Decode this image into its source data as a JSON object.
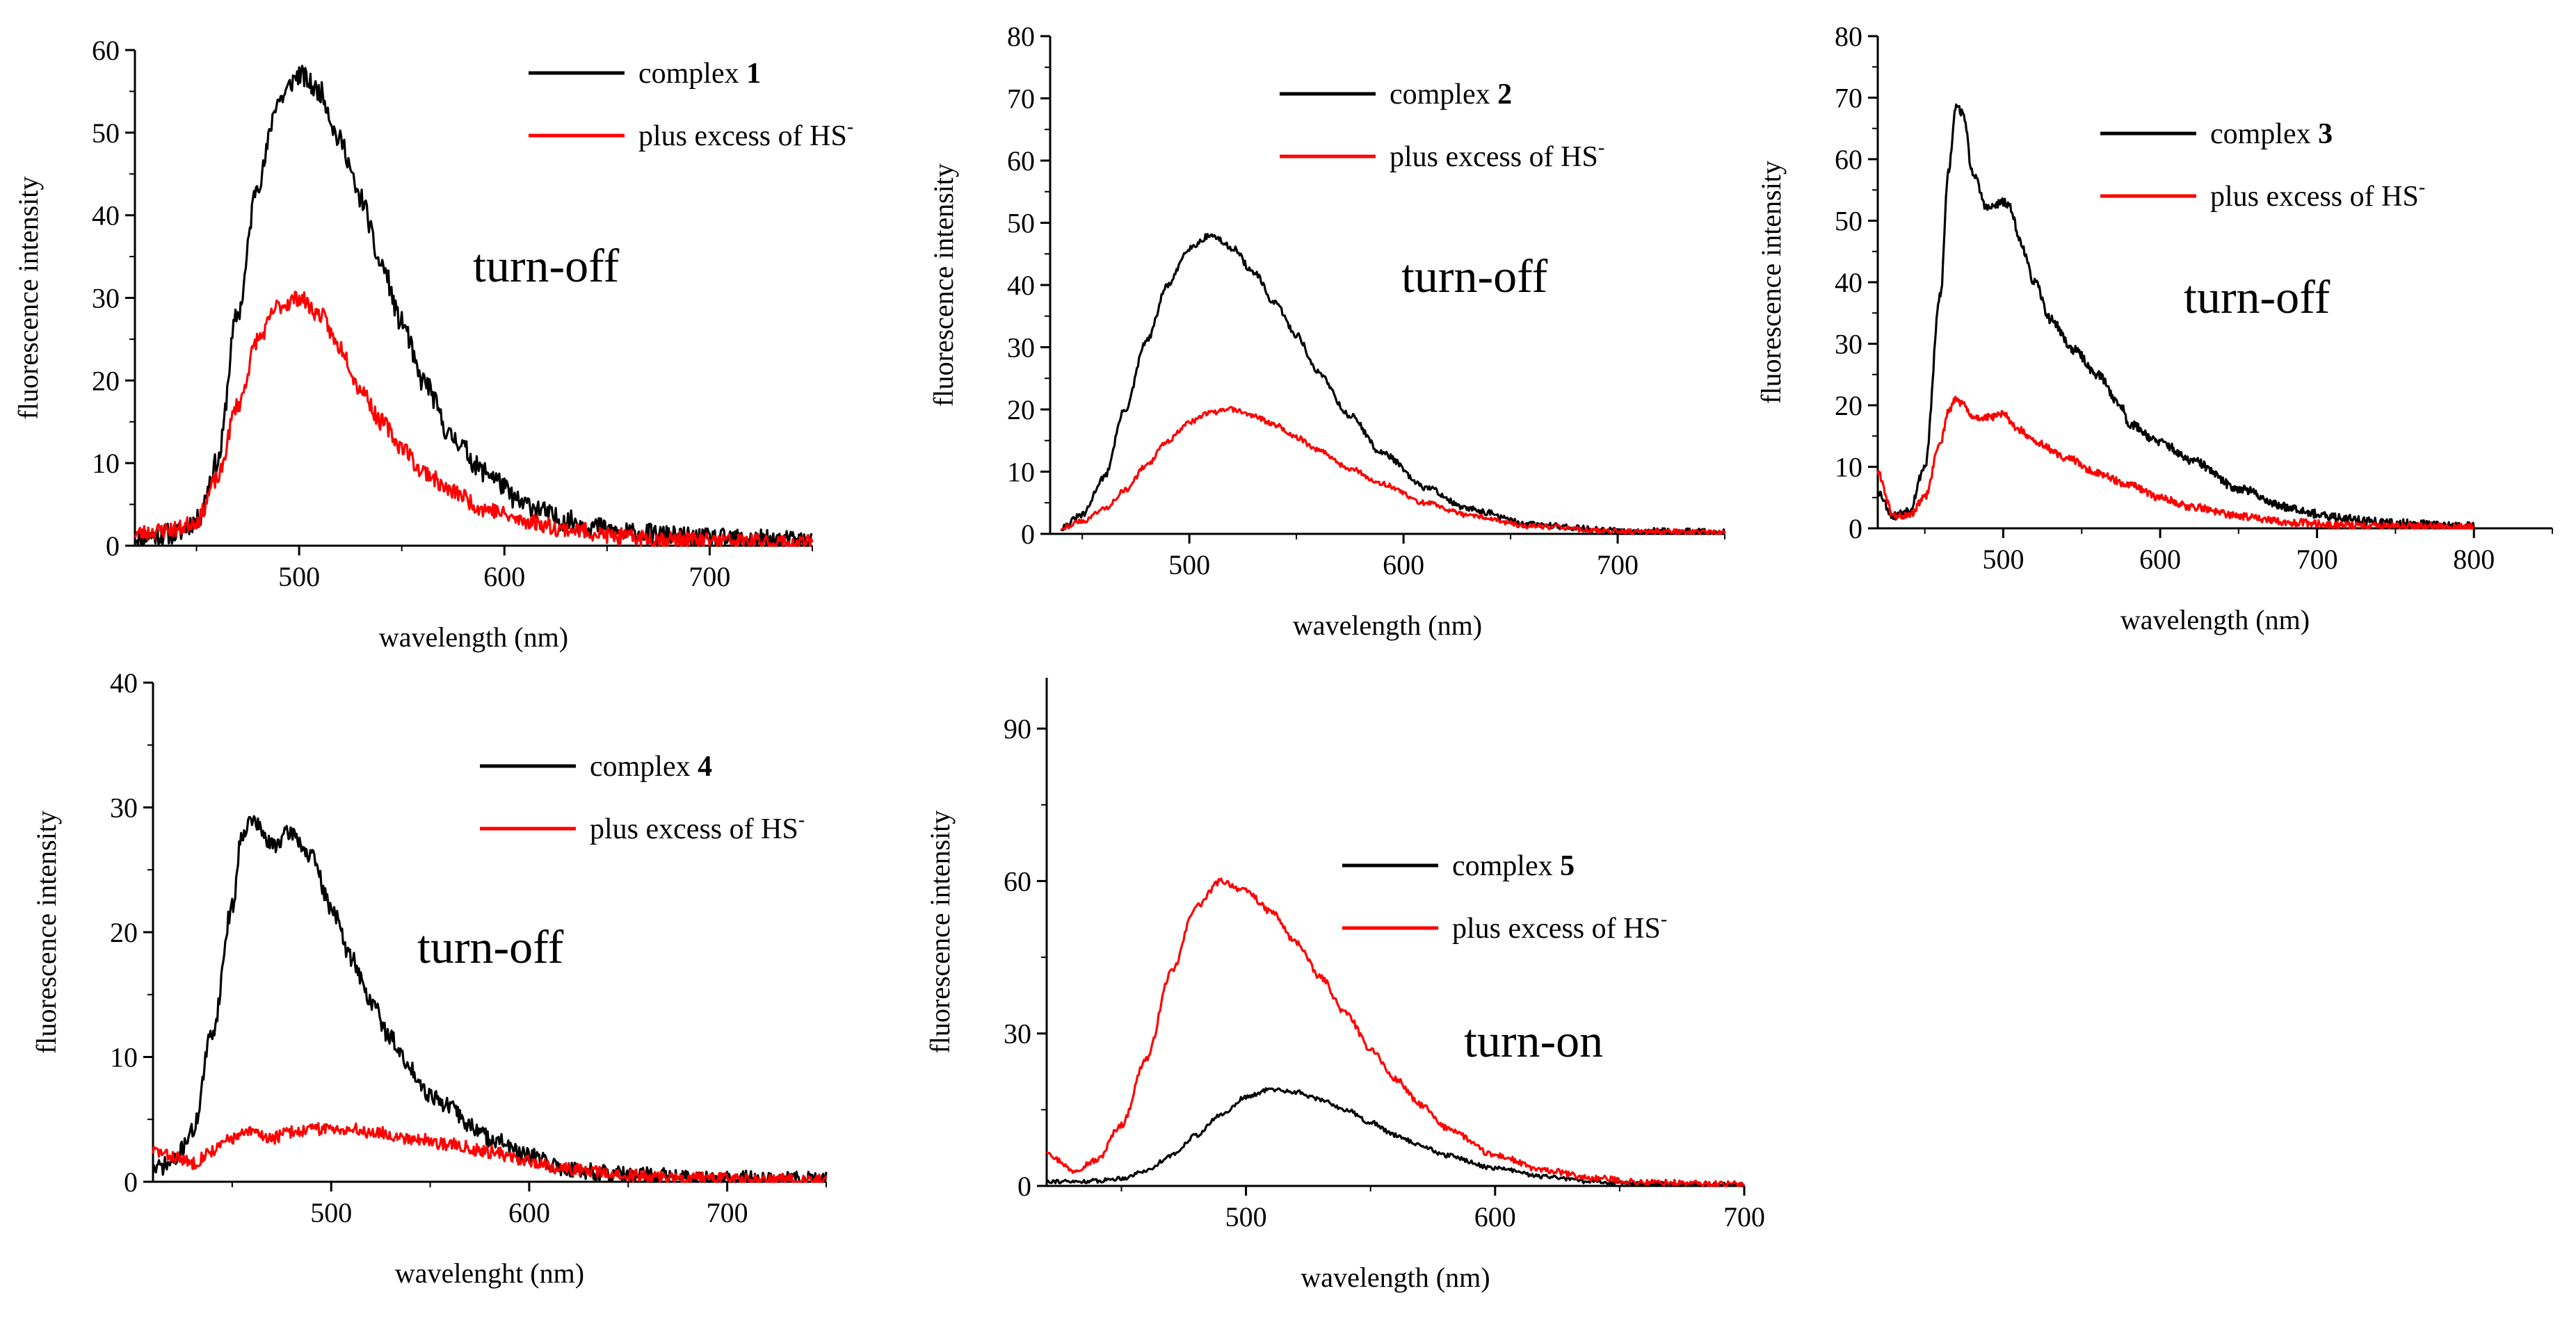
{
  "chart_data": [
    {
      "id": "p1",
      "type": "line",
      "x_label": "wavelength (nm)",
      "y_label": "fluorescence intensity",
      "xlim": [
        420,
        750
      ],
      "ylim": [
        0,
        60
      ],
      "x_ticks": [
        500,
        600,
        700
      ],
      "y_ticks": [
        0,
        10,
        20,
        30,
        40,
        50,
        60
      ],
      "annotation": "turn-off",
      "legend": [
        {
          "text": "complex ",
          "bold": "1",
          "sup": "",
          "color": "#000000"
        },
        {
          "text": "plus excess of HS",
          "bold": "",
          "sup": "-",
          "color": "#ff0000"
        }
      ],
      "series": [
        {
          "color": "#000000",
          "noise": 1.3,
          "seed": 11,
          "x": [
            420,
            440,
            450,
            460,
            470,
            480,
            490,
            500,
            510,
            520,
            530,
            540,
            550,
            560,
            575,
            590,
            610,
            630,
            660,
            700,
            750
          ],
          "y": [
            1,
            1.5,
            3,
            10,
            28,
            44,
            54,
            57,
            55,
            49,
            42,
            34,
            27,
            20,
            13,
            9,
            5,
            3,
            1.5,
            0.8,
            0.5
          ]
        },
        {
          "color": "#ff0000",
          "noise": 1.0,
          "seed": 23,
          "x": [
            420,
            440,
            450,
            460,
            470,
            480,
            490,
            500,
            510,
            520,
            530,
            540,
            550,
            560,
            575,
            590,
            610,
            630,
            660,
            700,
            750
          ],
          "y": [
            1.5,
            2,
            3,
            8,
            17,
            25,
            29,
            30,
            28,
            24,
            19,
            15,
            12,
            9,
            6.5,
            4.5,
            3,
            2,
            1,
            0.6,
            0.3
          ]
        }
      ]
    },
    {
      "id": "p2",
      "type": "line",
      "x_label": "wavelength (nm)",
      "y_label": "fluorescence intensity",
      "xlim": [
        435,
        750
      ],
      "ylim": [
        0,
        80
      ],
      "x_ticks": [
        500,
        600,
        700
      ],
      "y_ticks": [
        0,
        10,
        20,
        30,
        40,
        50,
        60,
        70,
        80
      ],
      "annotation": "turn-off",
      "legend": [
        {
          "text": "complex ",
          "bold": "2",
          "sup": "",
          "color": "#000000"
        },
        {
          "text": "plus excess of  HS",
          "bold": "",
          "sup": "-",
          "color": "#ff0000"
        }
      ],
      "series": [
        {
          "color": "#000000",
          "noise": 0.5,
          "seed": 31,
          "x": [
            440,
            450,
            460,
            470,
            480,
            490,
            500,
            510,
            520,
            530,
            540,
            550,
            560,
            575,
            590,
            610,
            630,
            660,
            700,
            750
          ],
          "y": [
            1,
            3,
            9,
            20,
            31,
            40,
            46,
            48,
            46,
            42,
            37,
            32,
            26,
            19,
            13,
            7.5,
            4,
            1.5,
            0.5,
            0.3
          ]
        },
        {
          "color": "#ff0000",
          "noise": 0.4,
          "seed": 43,
          "x": [
            440,
            450,
            460,
            470,
            480,
            490,
            500,
            510,
            520,
            530,
            540,
            550,
            560,
            575,
            590,
            610,
            630,
            660,
            700,
            750
          ],
          "y": [
            1,
            2,
            4,
            7,
            11,
            15,
            18,
            19.5,
            20,
            19,
            17.5,
            15.5,
            13.5,
            10.5,
            8,
            5,
            3,
            1.2,
            0.4,
            0.3
          ]
        }
      ]
    },
    {
      "id": "p3",
      "type": "line",
      "x_label": "wavelength (nm)",
      "y_label": "fluorescence intensity",
      "xlim": [
        420,
        850
      ],
      "ylim": [
        0,
        80
      ],
      "x_ticks": [
        500,
        600,
        700,
        800
      ],
      "y_ticks": [
        0,
        10,
        20,
        30,
        40,
        50,
        60,
        70,
        80
      ],
      "annotation": "turn-off",
      "legend": [
        {
          "text": "complex ",
          "bold": "3",
          "sup": "",
          "color": "#000000"
        },
        {
          "text": "plus excess of HS",
          "bold": "",
          "sup": "-",
          "color": "#ff0000"
        }
      ],
      "series": [
        {
          "color": "#000000",
          "noise": 0.7,
          "seed": 53,
          "x": [
            420,
            430,
            440,
            450,
            460,
            465,
            470,
            475,
            480,
            490,
            500,
            505,
            510,
            520,
            530,
            545,
            560,
            575,
            580,
            600,
            620,
            650,
            680,
            710,
            750,
            800
          ],
          "y": [
            6,
            2,
            3,
            10,
            38,
            58,
            69,
            67,
            58,
            52,
            53,
            52,
            47,
            40,
            34,
            29,
            25,
            20,
            17,
            14,
            11,
            6.5,
            3.5,
            1.8,
            0.8,
            0.3
          ]
        },
        {
          "color": "#ff0000",
          "noise": 0.6,
          "seed": 61,
          "x": [
            420,
            430,
            440,
            450,
            460,
            465,
            470,
            475,
            480,
            490,
            500,
            510,
            520,
            540,
            560,
            580,
            600,
            620,
            650,
            680,
            720,
            760,
            800
          ],
          "y": [
            9,
            2,
            2,
            5,
            14,
            19,
            21,
            20,
            18,
            18,
            18.5,
            16,
            14,
            11.5,
            9,
            7,
            5,
            3.5,
            2,
            1,
            0.5,
            0.3,
            0.2
          ]
        }
      ]
    },
    {
      "id": "p4",
      "type": "line",
      "x_label": "wavelenght (nm)",
      "y_label": "fluorescence intensity",
      "xlim": [
        410,
        750
      ],
      "ylim": [
        0,
        40
      ],
      "x_ticks": [
        500,
        600,
        700
      ],
      "y_ticks": [
        0,
        10,
        20,
        30,
        40
      ],
      "annotation": "turn-off",
      "legend": [
        {
          "text": "complex ",
          "bold": "4",
          "sup": "",
          "color": "#000000"
        },
        {
          "text": "plus excess of HS",
          "bold": "",
          "sup": "-",
          "color": "#ff0000"
        }
      ],
      "series": [
        {
          "color": "#000000",
          "noise": 0.7,
          "seed": 71,
          "x": [
            410,
            420,
            430,
            440,
            450,
            455,
            460,
            470,
            480,
            490,
            500,
            510,
            520,
            530,
            540,
            550,
            560,
            570,
            580,
            600,
            620,
            650,
            700,
            750
          ],
          "y": [
            1,
            1.5,
            4,
            12,
            22,
            28,
            29,
            27,
            28,
            26,
            22,
            18,
            14.5,
            11.5,
            9,
            7,
            6,
            4.5,
            3.5,
            2,
            1,
            0.5,
            0.2,
            0.1
          ]
        },
        {
          "color": "#ff0000",
          "noise": 0.5,
          "seed": 83,
          "x": [
            410,
            420,
            430,
            440,
            450,
            460,
            470,
            480,
            490,
            500,
            510,
            520,
            540,
            560,
            580,
            600,
            620,
            650,
            700,
            750
          ],
          "y": [
            2.5,
            2,
            1.5,
            2.5,
            3.5,
            4,
            3.5,
            4,
            4.2,
            4.3,
            4.2,
            4,
            3.5,
            3,
            2.4,
            1.6,
            1,
            0.5,
            0.2,
            0.1
          ]
        }
      ]
    },
    {
      "id": "p5",
      "type": "line",
      "x_label": "wavelength (nm)",
      "y_label": "fluorescence intensity",
      "xlim": [
        420,
        700
      ],
      "ylim": [
        0,
        100
      ],
      "x_ticks": [
        500,
        600,
        700
      ],
      "y_ticks": [
        0,
        30,
        60,
        90
      ],
      "annotation": "turn-on",
      "legend": [
        {
          "text": "complex ",
          "bold": "5",
          "sup": "",
          "color": "#000000"
        },
        {
          "text": "plus excess of HS",
          "bold": "",
          "sup": "-",
          "color": "#ff0000"
        }
      ],
      "series": [
        {
          "color": "#000000",
          "noise": 0.4,
          "seed": 91,
          "x": [
            420,
            430,
            440,
            450,
            460,
            470,
            480,
            490,
            500,
            510,
            520,
            530,
            540,
            550,
            560,
            570,
            580,
            600,
            620,
            640,
            660,
            700
          ],
          "y": [
            1,
            0.8,
            1,
            1.5,
            3,
            6,
            10,
            14,
            17.5,
            19,
            18.5,
            17,
            15,
            12.5,
            10,
            8,
            6,
            3.5,
            1.8,
            0.8,
            0.4,
            0.2
          ]
        },
        {
          "color": "#ff0000",
          "noise": 0.6,
          "seed": 97,
          "x": [
            420,
            425,
            430,
            440,
            450,
            460,
            470,
            480,
            490,
            500,
            510,
            520,
            530,
            540,
            550,
            560,
            570,
            580,
            600,
            620,
            640,
            660,
            700
          ],
          "y": [
            7,
            5,
            3,
            5,
            12,
            25,
            42,
            55,
            60,
            58,
            54,
            48,
            41,
            34,
            27,
            21,
            16,
            11.5,
            6,
            3,
            1.5,
            0.7,
            0.3
          ]
        }
      ]
    }
  ]
}
